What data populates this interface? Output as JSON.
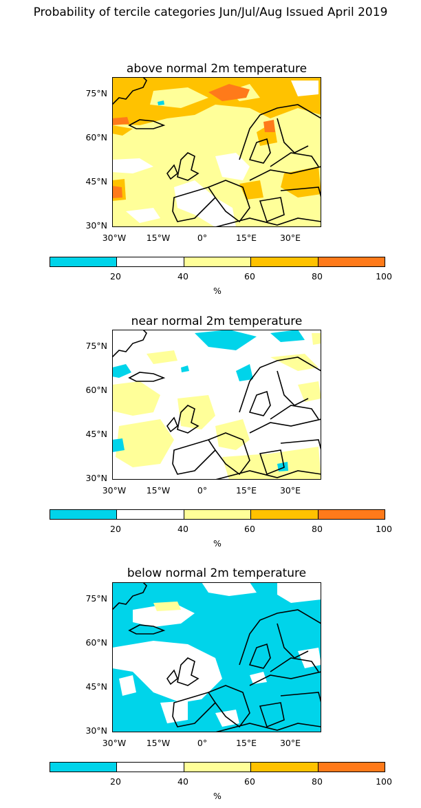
{
  "suptitle": "Probability of tercile categories Jun/Jul/Aug Issued April 2019",
  "panels": [
    {
      "title": "above normal 2m temperature",
      "category": "above"
    },
    {
      "title": "near normal 2m temperature",
      "category": "near"
    },
    {
      "title": "below normal 2m temperature",
      "category": "below"
    }
  ],
  "lat_labels": [
    "75°N",
    "60°N",
    "45°N",
    "30°N"
  ],
  "lon_labels": [
    "30°W",
    "15°W",
    "0°",
    "15°E",
    "30°E"
  ],
  "colorbar": {
    "ticks": [
      "20",
      "40",
      "60",
      "80",
      "100"
    ],
    "unit": "%",
    "colors": [
      "#00d4ea",
      "#ffffff",
      "#ffff99",
      "#ffc200",
      "#ff7a1a"
    ]
  }
}
